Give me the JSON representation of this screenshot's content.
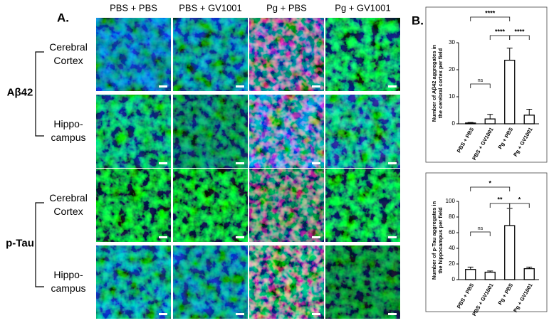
{
  "panel_a": {
    "label": "A.",
    "columns": [
      "PBS + PBS",
      "PBS + GV1001",
      "Pg + PBS",
      "Pg + GV1001"
    ],
    "groups": [
      {
        "name": "Aβ42",
        "rows": [
          [
            "Cerebral",
            "Cortex"
          ],
          [
            "Hippo-",
            "campus"
          ]
        ]
      },
      {
        "name": "p-Tau",
        "rows": [
          [
            "Cerebral",
            "Cortex"
          ],
          [
            "Hippo-",
            "campus"
          ]
        ]
      }
    ]
  },
  "panel_b": {
    "label": "B."
  },
  "chart_data": [
    {
      "type": "bar",
      "ylabel": [
        "Number of Aβ42 aggregates in",
        "the cerebral cortex per field"
      ],
      "categories": [
        "PBS + PBS",
        "PBS + GV1001",
        "Pg + PBS",
        "Pg + GV1001"
      ],
      "series": [
        {
          "color": "#ffffff",
          "values": [
            0.3,
            1.8,
            23.5,
            3.2
          ],
          "errors": [
            0.2,
            1.7,
            4.5,
            2.2
          ]
        }
      ],
      "ylim": [
        0,
        30
      ],
      "yticks": [
        0,
        10,
        20,
        30
      ],
      "annotations": [
        "****",
        "****",
        "****",
        "ns"
      ]
    },
    {
      "type": "bar",
      "ylabel": [
        "Number of p-Tau aggregates in",
        "the hippocampus per field"
      ],
      "categories": [
        "PBS + PBS",
        "PBS + GV1001",
        "Pg + PBS",
        "Pg + GV1001"
      ],
      "series": [
        {
          "color": "#ffffff",
          "values": [
            13,
            9.5,
            69,
            14
          ],
          "errors": [
            3,
            1.5,
            22,
            2
          ]
        }
      ],
      "ylim": [
        0,
        100
      ],
      "yticks": [
        0,
        20,
        40,
        60,
        80,
        100
      ],
      "annotations": [
        "*",
        "**",
        "*",
        "ns"
      ]
    }
  ]
}
